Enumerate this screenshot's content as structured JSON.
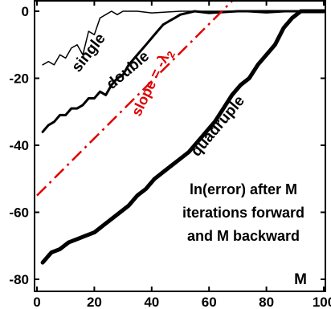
{
  "chart_data": {
    "type": "line",
    "xlabel": "M",
    "ylabel": "",
    "xlim": [
      0,
      100
    ],
    "ylim": [
      -82,
      2
    ],
    "xticks": [
      0,
      20,
      40,
      60,
      80,
      100
    ],
    "yticks": [
      0,
      -20,
      -40,
      -60,
      -80
    ],
    "grid": false,
    "annotation_lines": [
      "ln(error) after M",
      "iterations forward",
      "and M backward"
    ],
    "slope_label": "slope = -λ",
    "slope_label_subscript": "2",
    "series": [
      {
        "name": "single",
        "line_weight": "thin",
        "color": "#000000",
        "x": [
          2,
          4,
          6,
          8,
          10,
          12,
          14,
          16,
          18,
          20,
          22,
          24,
          26,
          28,
          30,
          35,
          40,
          50,
          60,
          70,
          80,
          90,
          100
        ],
        "y": [
          -16,
          -15,
          -16,
          -13,
          -14,
          -11,
          -10,
          -13,
          -6,
          -7,
          -2,
          -1,
          0,
          -1,
          0,
          0,
          -0.5,
          0,
          0,
          0,
          -0.5,
          0,
          0
        ]
      },
      {
        "name": "double",
        "line_weight": "medium",
        "color": "#000000",
        "x": [
          2,
          4,
          6,
          8,
          10,
          12,
          14,
          16,
          18,
          20,
          22,
          24,
          26,
          28,
          30,
          32,
          34,
          36,
          38,
          40,
          42,
          44,
          46,
          48,
          50,
          55,
          60,
          70,
          80,
          90,
          100
        ],
        "y": [
          -36,
          -34,
          -33,
          -31,
          -31,
          -29,
          -29,
          -28,
          -26,
          -26,
          -24,
          -25,
          -22,
          -20,
          -19,
          -16,
          -14,
          -12,
          -10,
          -8,
          -6,
          -4,
          -3,
          -2,
          -1,
          0,
          -0.5,
          0,
          0,
          0,
          0
        ]
      },
      {
        "name": "quadruple",
        "line_weight": "thick",
        "color": "#000000",
        "x": [
          2,
          5,
          8,
          11,
          14,
          17,
          20,
          23,
          26,
          29,
          32,
          35,
          38,
          41,
          44,
          47,
          50,
          53,
          56,
          59,
          62,
          65,
          68,
          71,
          74,
          77,
          80,
          83,
          86,
          89,
          92,
          96,
          100
        ],
        "y": [
          -75,
          -72,
          -71,
          -69,
          -68,
          -67,
          -66,
          -64,
          -62,
          -60,
          -58,
          -55,
          -53,
          -50,
          -48,
          -46,
          -44,
          -42,
          -39,
          -36,
          -33,
          -29,
          -25,
          -22,
          -20,
          -16,
          -13,
          -10,
          -5,
          -2,
          0,
          0,
          0
        ]
      }
    ],
    "reference_line": {
      "style": "dash-dot",
      "color": "#e00000",
      "x": [
        0,
        68
      ],
      "y": [
        -55,
        3
      ]
    }
  }
}
